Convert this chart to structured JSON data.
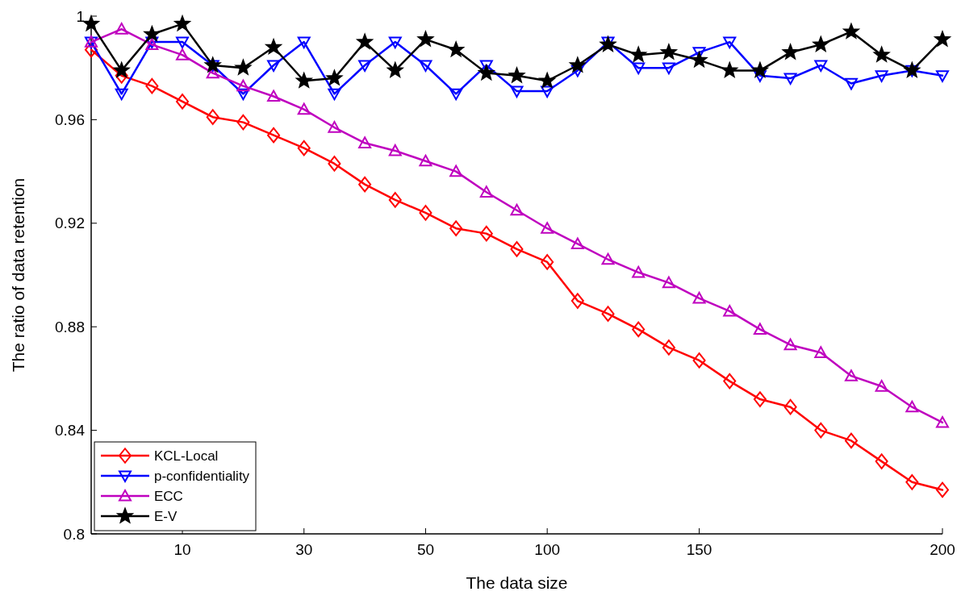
{
  "chart_data": {
    "type": "line",
    "xlabel": "The data size",
    "ylabel": "The ratio of data retention",
    "categories": [
      null,
      null,
      null,
      "10",
      null,
      null,
      null,
      "30",
      null,
      null,
      null,
      "50",
      null,
      null,
      null,
      "100",
      null,
      null,
      null,
      null,
      "150",
      null,
      null,
      null,
      null,
      null,
      null,
      null,
      "200"
    ],
    "ylim": [
      0.8,
      1
    ],
    "yticks": [
      0.8,
      0.84,
      0.88,
      0.92,
      0.96,
      1
    ],
    "grid": false,
    "legend": "bottom left",
    "line_style": "solid",
    "series": [
      {
        "name": "KCL-Local",
        "color": "#ff0000",
        "marker": "diamond",
        "values": [
          0.987,
          0.977,
          0.973,
          0.967,
          0.961,
          0.959,
          0.954,
          0.949,
          0.943,
          0.935,
          0.929,
          0.924,
          0.918,
          0.916,
          0.91,
          0.905,
          0.89,
          0.885,
          0.879,
          0.872,
          0.867,
          0.859,
          0.852,
          0.849,
          0.84,
          0.836,
          0.828,
          0.82,
          0.817
        ]
      },
      {
        "name": "p-confidentiality",
        "color": "#0000ff",
        "marker": "triangle-down",
        "values": [
          0.99,
          0.97,
          0.99,
          0.99,
          0.981,
          0.97,
          0.981,
          0.99,
          0.97,
          0.981,
          0.99,
          0.981,
          0.97,
          0.981,
          0.971,
          0.971,
          0.979,
          0.99,
          0.98,
          0.98,
          0.986,
          0.99,
          0.977,
          0.976,
          0.981,
          0.974,
          0.977,
          0.979,
          0.977
        ]
      },
      {
        "name": "ECC",
        "color": "#bf00bf",
        "marker": "triangle",
        "values": [
          0.99,
          0.995,
          0.989,
          0.985,
          0.978,
          0.973,
          0.969,
          0.964,
          0.957,
          0.951,
          0.948,
          0.944,
          0.94,
          0.932,
          0.925,
          0.918,
          0.912,
          0.906,
          0.901,
          0.897,
          0.891,
          0.886,
          0.879,
          0.873,
          0.87,
          0.861,
          0.857,
          0.849,
          0.843
        ]
      },
      {
        "name": "E-V",
        "color": "#000000",
        "marker": "star",
        "values": [
          0.997,
          0.979,
          0.993,
          0.997,
          0.981,
          0.98,
          0.988,
          0.975,
          0.976,
          0.99,
          0.979,
          0.991,
          0.987,
          0.978,
          0.977,
          0.975,
          0.981,
          0.989,
          0.985,
          0.986,
          0.983,
          0.979,
          0.979,
          0.986,
          0.989,
          0.994,
          0.985,
          0.979,
          0.991
        ]
      }
    ]
  }
}
